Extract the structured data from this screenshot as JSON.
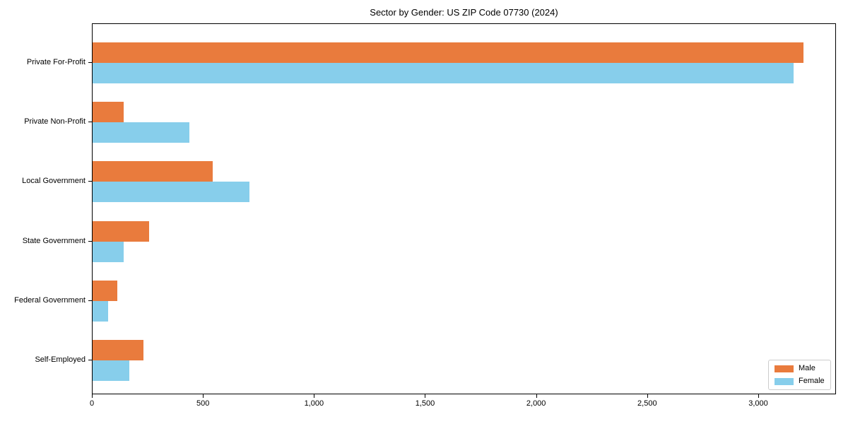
{
  "chart_data": {
    "type": "bar",
    "orientation": "horizontal",
    "title": "Sector by Gender: US ZIP Code 07730 (2024)",
    "categories": [
      "Private For-Profit",
      "Private Non-Profit",
      "Local Government",
      "State Government",
      "Federal Government",
      "Self-Employed"
    ],
    "series": [
      {
        "name": "Male",
        "color": "#e97b3d",
        "values": [
          3200,
          140,
          540,
          255,
          110,
          230
        ]
      },
      {
        "name": "Female",
        "color": "#87ceeb",
        "values": [
          3155,
          435,
          705,
          140,
          70,
          165
        ]
      }
    ],
    "xlabel": "",
    "ylabel": "",
    "xlim": [
      0,
      3350
    ],
    "xticks": [
      0,
      500,
      1000,
      1500,
      2000,
      2500,
      3000
    ],
    "xtick_labels": [
      "0",
      "500",
      "1,000",
      "1,500",
      "2,000",
      "2,500",
      "3,000"
    ],
    "grid": false,
    "legend": {
      "position": "lower right",
      "entries": [
        "Male",
        "Female"
      ]
    }
  }
}
